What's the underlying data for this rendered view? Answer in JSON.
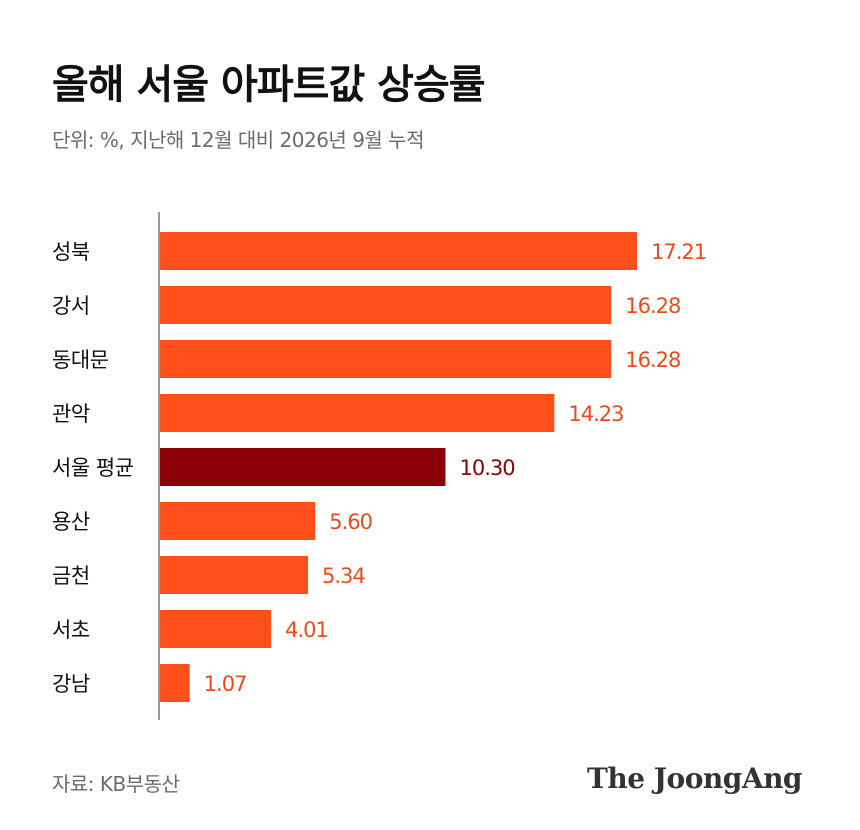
{
  "header": {
    "title": "올해 서울 아파트값 상승률",
    "subtitle": "단위: %, 지난해 12월 대비 2026년 9월 누적"
  },
  "footer": {
    "source": "자료: KB부동산",
    "logo_text": "The JoongAng"
  },
  "colors": {
    "bar": "#ff4f1a",
    "highlight_bar": "#8a0006",
    "value_text": "#f04a1c",
    "highlight_text": "#8a0006",
    "axis": "#555555"
  },
  "chart_data": {
    "type": "bar",
    "orientation": "horizontal",
    "title": "올해 서울 아파트값 상승률",
    "subtitle": "단위: %, 지난해 12월 대비 2026년 9월 누적",
    "categories": [
      "성북",
      "강서",
      "동대문",
      "관악",
      "서울 평균",
      "용산",
      "금천",
      "서초",
      "강남"
    ],
    "values": [
      17.21,
      16.28,
      16.28,
      14.23,
      10.3,
      5.6,
      5.34,
      4.01,
      1.07
    ],
    "value_labels": [
      "17.21",
      "16.28",
      "16.28",
      "14.23",
      "10.30",
      "5.60",
      "5.34",
      "4.01",
      "1.07"
    ],
    "highlight": "서울 평균",
    "xlim": [
      0,
      17.21
    ],
    "grid": false,
    "legend": "none"
  }
}
